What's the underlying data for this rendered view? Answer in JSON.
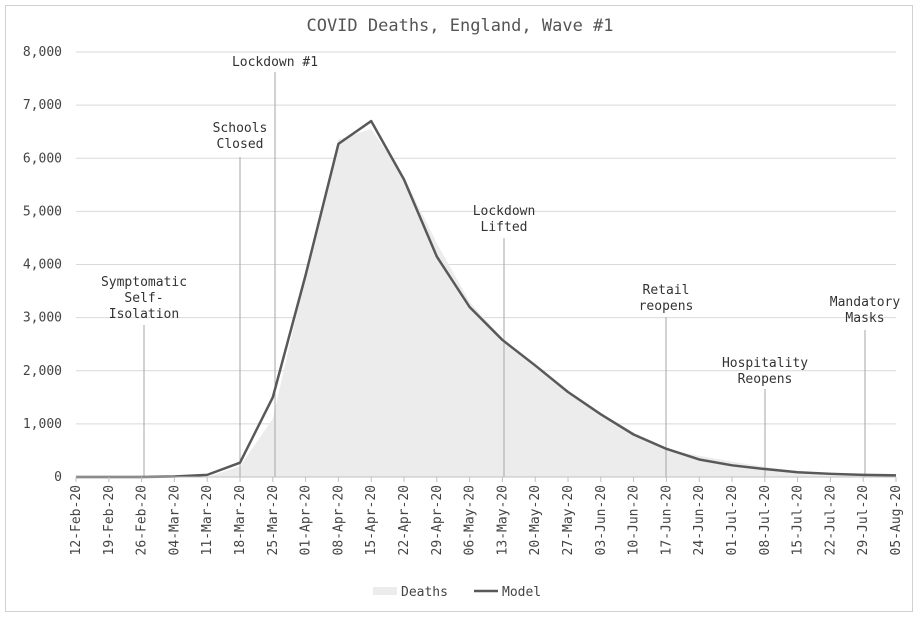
{
  "chart_data": {
    "type": "area",
    "title": "COVID Deaths, England, Wave #1",
    "xlabel": "",
    "ylabel": "",
    "ylim": [
      0,
      8000
    ],
    "yticks": [
      0,
      1000,
      2000,
      3000,
      4000,
      5000,
      6000,
      7000,
      8000
    ],
    "ytick_labels": [
      "0",
      "1,000",
      "2,000",
      "3,000",
      "4,000",
      "5,000",
      "6,000",
      "7,000",
      "8,000"
    ],
    "categories": [
      "12-Feb-20",
      "19-Feb-20",
      "26-Feb-20",
      "04-Mar-20",
      "11-Mar-20",
      "18-Mar-20",
      "25-Mar-20",
      "01-Apr-20",
      "08-Apr-20",
      "15-Apr-20",
      "22-Apr-20",
      "29-Apr-20",
      "06-May-20",
      "13-May-20",
      "20-May-20",
      "27-May-20",
      "03-Jun-20",
      "10-Jun-20",
      "17-Jun-20",
      "24-Jun-20",
      "01-Jul-20",
      "08-Jul-20",
      "15-Jul-20",
      "22-Jul-20",
      "29-Jul-20",
      "05-Aug-20"
    ],
    "grid": true,
    "legend_position": "bottom",
    "series": [
      {
        "name": "Deaths",
        "type": "area",
        "color": "#ececec",
        "values": [
          0,
          0,
          0,
          0,
          0,
          200,
          1100,
          3800,
          6350,
          6550,
          5650,
          4400,
          3300,
          2600,
          2100,
          1600,
          1150,
          800,
          520,
          400,
          290,
          190,
          110,
          70,
          50,
          30
        ]
      },
      {
        "name": "Model",
        "type": "line",
        "color": "#595959",
        "values": [
          0,
          0,
          0,
          10,
          40,
          270,
          1500,
          3800,
          6270,
          6700,
          5600,
          4150,
          3200,
          2580,
          2100,
          1600,
          1180,
          800,
          530,
          330,
          220,
          150,
          90,
          60,
          40,
          30
        ]
      }
    ],
    "annotations": [
      {
        "lines": [
          "Symptomatic",
          "Self-",
          "Isolation"
        ],
        "category_index": 2
      },
      {
        "lines": [
          "Schools",
          "Closed"
        ],
        "category_index": 5
      },
      {
        "lines": [
          "Lockdown #1"
        ],
        "category_index": 6
      },
      {
        "lines": [
          "Lockdown",
          "Lifted"
        ],
        "category_index": 13
      },
      {
        "lines": [
          "Retail",
          "reopens"
        ],
        "category_index": 18
      },
      {
        "lines": [
          "Hospitality",
          "Reopens"
        ],
        "category_index": 21
      },
      {
        "lines": [
          "Mandatory",
          "Masks"
        ],
        "category_index": 24
      }
    ]
  }
}
